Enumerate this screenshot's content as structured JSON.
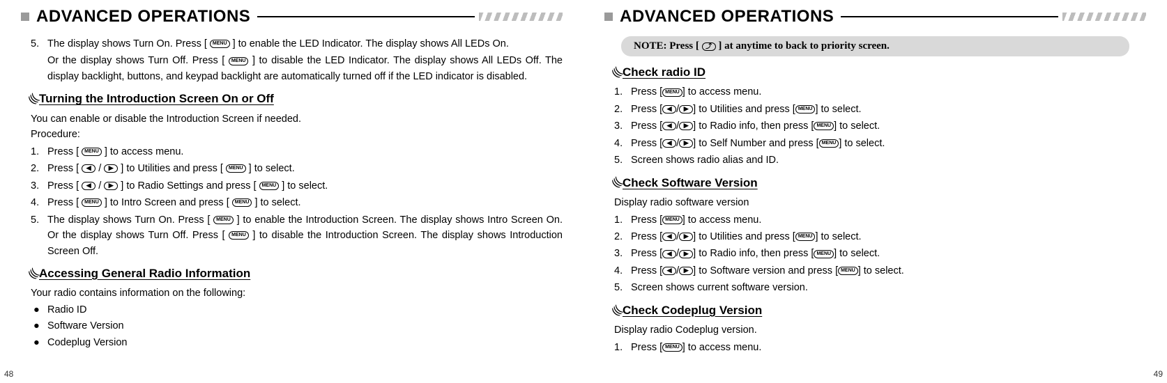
{
  "header": {
    "title": "ADVANCED OPERATIONS"
  },
  "keys": {
    "menu": "MENU",
    "left": "◀",
    "right": "▶",
    "back": "⤴"
  },
  "left_page": {
    "num": "48",
    "cont_step5a": "The display shows Turn On. Press [",
    "cont_step5b": "] to enable the LED Indicator. The display shows All LEDs On.",
    "cont_or_a": "Or the display shows Turn Off. Press [",
    "cont_or_b": "] to disable the LED Indicator. The display shows All LEDs Off. The display backlight, buttons, and keypad backlight are automatically turned off if the LED indicator is disabled.",
    "sec1": {
      "title": "Turning the Introduction Screen On or Off",
      "intro1": "You can enable or disable the  Introduction Screen if needed.",
      "intro2": "Procedure:",
      "s1a": "Press [",
      "s1b": "] to access menu.",
      "s2a": "Press [",
      "s2b": "/",
      "s2c": "] to Utilities and press [",
      "s2d": "] to select.",
      "s3a": "Press [",
      "s3b": "/",
      "s3c": "] to Radio Settings and press [",
      "s3d": "] to select.",
      "s4a": "Press [",
      "s4b": "] to Intro Screen and press [",
      "s4c": "] to select.",
      "s5a": "The display shows Turn On. Press [",
      "s5b": "] to enable the Introduction Screen. The display shows Intro Screen On. Or the display shows Turn Off. Press [",
      "s5c": "] to disable the Introduction Screen. The display shows Introduction Screen Off."
    },
    "sec2": {
      "title": "Accessing General Radio Information",
      "intro": "Your radio contains information on the following:",
      "b1": "Radio ID",
      "b2": "Software Version",
      "b3": "Codeplug Version"
    }
  },
  "right_page": {
    "num": "49",
    "note_a": "NOTE: Press  [",
    "note_b": "] at anytime to back to priority screen.",
    "sec1": {
      "title": "Check radio ID",
      "s1a": "Press [",
      "s1b": "] to access menu.",
      "s2a": "Press [",
      "s2b": "/",
      "s2c": "] to Utilities and press [",
      "s2d": "] to select.",
      "s3a": "Press [",
      "s3b": "/",
      "s3c": "] to Radio info, then press [",
      "s3d": "] to select.",
      "s4a": "Press [",
      "s4b": "/",
      "s4c": "] to Self Number and press [",
      "s4d": "] to select.",
      "s5": "Screen shows radio alias and ID."
    },
    "sec2": {
      "title": "Check Software Version",
      "intro": "Display radio software version",
      "s1a": "Press [",
      "s1b": "] to access menu.",
      "s2a": "Press [",
      "s2b": "/",
      "s2c": "] to Utilities and press [",
      "s2d": "] to select.",
      "s3a": "Press [",
      "s3b": "/",
      "s3c": "] to Radio info, then press [",
      "s3d": "] to select.",
      "s4a": "Press [",
      "s4b": "/",
      "s4c": "] to Software version and press [",
      "s4d": "] to select.",
      "s5": "Screen shows current software version."
    },
    "sec3": {
      "title": "Check Codeplug Version",
      "intro": "Display radio Codeplug version.",
      "s1a": "Press [",
      "s1b": "] to access menu."
    }
  }
}
